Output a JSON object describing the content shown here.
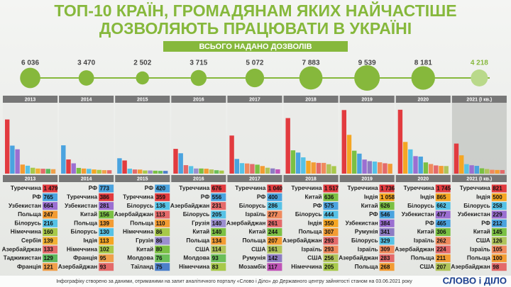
{
  "chart_data": {
    "type": "infographic",
    "title_lines": [
      "ТОП-10 КРАЇН, ГРОМАДЯНАМ ЯКИХ НАЙЧАСТІШЕ",
      "ДОЗВОЛЯЮТЬ ПРАЦЮВАТИ В УКРАЇНІ"
    ],
    "subtitle": "ВСЬОГО НАДАНО ДОЗВОЛІВ",
    "ylim": [
      0,
      1800
    ],
    "years": [
      {
        "year": "2013",
        "total": 6036,
        "total_label": "6 036",
        "countries": [
          {
            "name": "Туреччина",
            "value": 1479,
            "value_label": "1 479"
          },
          {
            "name": "РФ",
            "value": 765
          },
          {
            "name": "Узбекистан",
            "value": 664
          },
          {
            "name": "Польща",
            "value": 247
          },
          {
            "name": "Білорусь",
            "value": 216
          },
          {
            "name": "Німеччина",
            "value": 160
          },
          {
            "name": "Сербія",
            "value": 139
          },
          {
            "name": "Азербайджан",
            "value": 133
          },
          {
            "name": "Таджикистан",
            "value": 129
          },
          {
            "name": "Франція",
            "value": 121
          }
        ]
      },
      {
        "year": "2014",
        "total": 3470,
        "total_label": "3 470",
        "countries": [
          {
            "name": "РФ",
            "value": 773
          },
          {
            "name": "Туреччина",
            "value": 386
          },
          {
            "name": "Узбекистан",
            "value": 281
          },
          {
            "name": "Китай",
            "value": 156
          },
          {
            "name": "Польща",
            "value": 139
          },
          {
            "name": "Білорусь",
            "value": 130
          },
          {
            "name": "Індія",
            "value": 113
          },
          {
            "name": "Німеччина",
            "value": 102
          },
          {
            "name": "Франція",
            "value": 95
          },
          {
            "name": "Азербайджан",
            "value": 93
          }
        ]
      },
      {
        "year": "2015",
        "total": 2502,
        "total_label": "2 502",
        "countries": [
          {
            "name": "РФ",
            "value": 420
          },
          {
            "name": "Туреччина",
            "value": 359
          },
          {
            "name": "Білорусь",
            "value": 136
          },
          {
            "name": "Азербайджан",
            "value": 113
          },
          {
            "name": "Польща",
            "value": 110
          },
          {
            "name": "Німеччина",
            "value": 86
          },
          {
            "name": "Грузія",
            "value": 86
          },
          {
            "name": "Китай",
            "value": 80
          },
          {
            "name": "Молдова",
            "value": 76
          },
          {
            "name": "Таїланд",
            "value": 75
          }
        ]
      },
      {
        "year": "2016",
        "total": 3715,
        "total_label": "3 715",
        "countries": [
          {
            "name": "Туреччина",
            "value": 676
          },
          {
            "name": "РФ",
            "value": 556
          },
          {
            "name": "Азербайджан",
            "value": 231
          },
          {
            "name": "Білорусь",
            "value": 205
          },
          {
            "name": "Грузія",
            "value": 140
          },
          {
            "name": "Китай",
            "value": 140
          },
          {
            "name": "Польща",
            "value": 134
          },
          {
            "name": "США",
            "value": 114
          },
          {
            "name": "Молдова",
            "value": 93
          },
          {
            "name": "Німеччина",
            "value": 83
          }
        ]
      },
      {
        "year": "2017",
        "total": 5072,
        "total_label": "5 072",
        "countries": [
          {
            "name": "Туреччина",
            "value": 1040,
            "value_label": "1 040"
          },
          {
            "name": "РФ",
            "value": 400
          },
          {
            "name": "Білорусь",
            "value": 286
          },
          {
            "name": "Ізраїль",
            "value": 277
          },
          {
            "name": "Азербайджан",
            "value": 261
          },
          {
            "name": "Китай",
            "value": 244
          },
          {
            "name": "Польща",
            "value": 207
          },
          {
            "name": "США",
            "value": 161
          },
          {
            "name": "Румунія",
            "value": 142
          },
          {
            "name": "Мозамбік",
            "value": 117
          }
        ]
      },
      {
        "year": "2018",
        "total": 7883,
        "total_label": "7 883",
        "countries": [
          {
            "name": "Туреччина",
            "value": 1517,
            "value_label": "1 517"
          },
          {
            "name": "Китай",
            "value": 636
          },
          {
            "name": "РФ",
            "value": 575
          },
          {
            "name": "Білорусь",
            "value": 444
          },
          {
            "name": "Індія",
            "value": 350
          },
          {
            "name": "Польща",
            "value": 307
          },
          {
            "name": "Азербайджан",
            "value": 293
          },
          {
            "name": "Ізраїль",
            "value": 293
          },
          {
            "name": "США",
            "value": 256
          },
          {
            "name": "Німеччина",
            "value": 205
          }
        ]
      },
      {
        "year": "2019",
        "total": 9539,
        "total_label": "9 539",
        "countries": [
          {
            "name": "Туреччина",
            "value": 1736,
            "value_label": "1 736"
          },
          {
            "name": "Індія",
            "value": 1058,
            "value_label": "1 058"
          },
          {
            "name": "Китай",
            "value": 626
          },
          {
            "name": "РФ",
            "value": 546
          },
          {
            "name": "Узбекистан",
            "value": 384
          },
          {
            "name": "Румунія",
            "value": 341
          },
          {
            "name": "Білорусь",
            "value": 329
          },
          {
            "name": "Ізраїль",
            "value": 309
          },
          {
            "name": "Азербайджан",
            "value": 283
          },
          {
            "name": "Польща",
            "value": 268
          }
        ]
      },
      {
        "year": "2020",
        "total": 8181,
        "total_label": "8 181",
        "countries": [
          {
            "name": "Туреччина",
            "value": 1745,
            "value_label": "1 745"
          },
          {
            "name": "Індія",
            "value": 865
          },
          {
            "name": "Білорусь",
            "value": 662
          },
          {
            "name": "Узбекистан",
            "value": 477
          },
          {
            "name": "РФ",
            "value": 465
          },
          {
            "name": "Китай",
            "value": 306
          },
          {
            "name": "Ізраїль",
            "value": 262
          },
          {
            "name": "Азербайджан",
            "value": 224
          },
          {
            "name": "Польща",
            "value": 211
          },
          {
            "name": "США",
            "value": 207
          }
        ]
      },
      {
        "year": "2021 (I кв.)",
        "total": 4218,
        "total_label": "4 218",
        "countries": [
          {
            "name": "Туреччина",
            "value": 821
          },
          {
            "name": "Індія",
            "value": 500
          },
          {
            "name": "Білорусь",
            "value": 258
          },
          {
            "name": "Узбекистан",
            "value": 229
          },
          {
            "name": "РФ",
            "value": 212
          },
          {
            "name": "Китай",
            "value": 145
          },
          {
            "name": "США",
            "value": 126
          },
          {
            "name": "Ізраїль",
            "value": 105
          },
          {
            "name": "Польща",
            "value": 100
          },
          {
            "name": "Азербайджан",
            "value": 98
          }
        ]
      }
    ],
    "country_colors": {
      "Туреччина": "#e23b3f",
      "РФ": "#4aa3df",
      "Узбекистан": "#9b6fd1",
      "Польща": "#f39c33",
      "Білорусь": "#56c2e6",
      "Німеччина": "#a8c94a",
      "Сербія": "#f2b134",
      "Азербайджан": "#e46a6a",
      "Таджикистан": "#5cb85c",
      "Франція": "#f0a04b",
      "Китай": "#7bc043",
      "Індія": "#f5a623",
      "Грузія": "#9b8fcf",
      "Молдова": "#6bbf59",
      "Таїланд": "#4c7fc9",
      "США": "#b0c45a",
      "Ізраїль": "#f08a5d",
      "Румунія": "#8e7cc3",
      "Мозамбік": "#c054b8"
    },
    "footer": "Інфографіку створено за даними, отриманими на запит аналітичного порталу «Слово і Діло» до Державного центру зайнятості станом на 03.06.2021 року",
    "logo": "СЛОВО і ДІЛО"
  }
}
